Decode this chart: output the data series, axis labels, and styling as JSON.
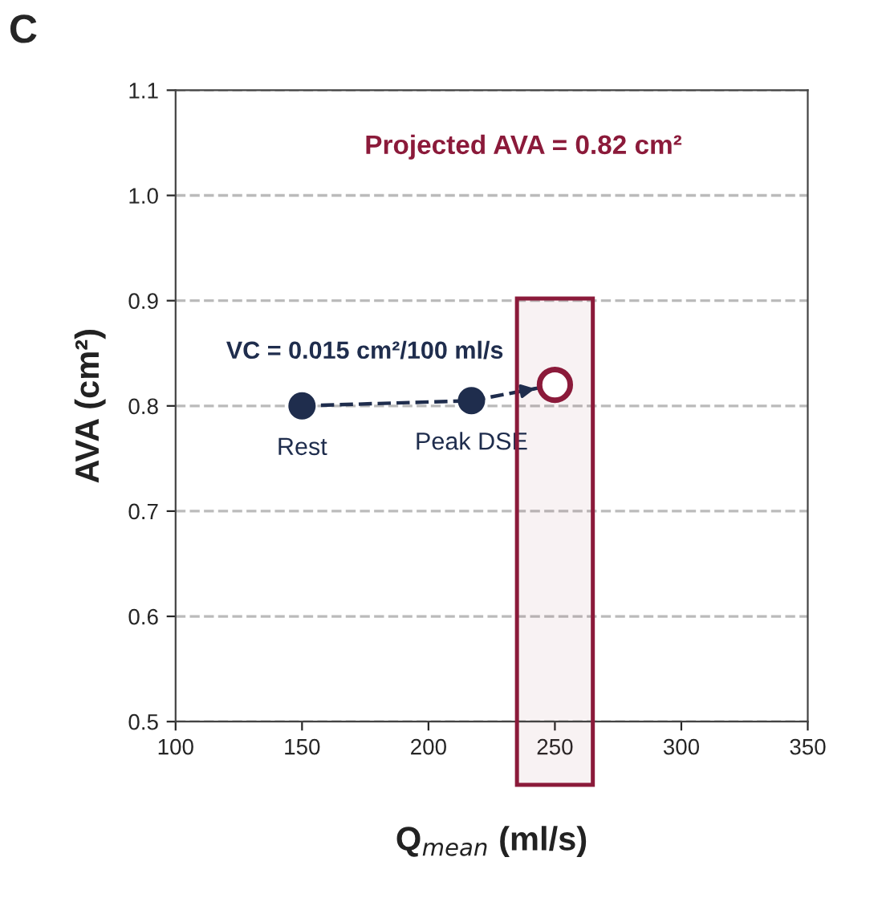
{
  "chart_data": {
    "type": "scatter",
    "xlabel": "Q$_{mean}$ (ml/s)",
    "ylabel": "AVA (cm²)",
    "xlim": [
      100,
      350
    ],
    "xticks": [
      100,
      150,
      200,
      250,
      300,
      350
    ],
    "ylim": [
      0.5,
      1.1
    ],
    "yticks": [
      0.5,
      0.6,
      0.7,
      0.8,
      0.9,
      {
        "value": 1,
        "label": "1.0"
      },
      1.1
    ],
    "grid": "y",
    "series": [
      {
        "type": "line",
        "line_style": "dashed",
        "marker": "none",
        "color": "#1f2d4d",
        "x": [
          150,
          217,
          250
        ],
        "values": [
          0.8,
          0.805,
          0.82
        ]
      },
      {
        "marker": "circle",
        "color": "#1f2d4d",
        "x": [
          150,
          217
        ],
        "values": [
          0.8,
          0.805
        ]
      },
      {
        "marker": "circle",
        "color": "#8b1a3a",
        "x": [
          250
        ],
        "values": [
          0.82
        ]
      }
    ],
    "bands": [
      {
        "axis": "x",
        "from": 235,
        "to": 265,
        "color": "#8b1a3a"
      }
    ],
    "annotations": [
      "C",
      "Projected AVA = 0.82 cm²",
      "VC = 0.015 cm²/100 ml/s",
      {
        "text": "Rest",
        "x": 150,
        "y": 0.8
      },
      {
        "text": "Peak DSE",
        "x": 217,
        "y": 0.805
      }
    ]
  }
}
